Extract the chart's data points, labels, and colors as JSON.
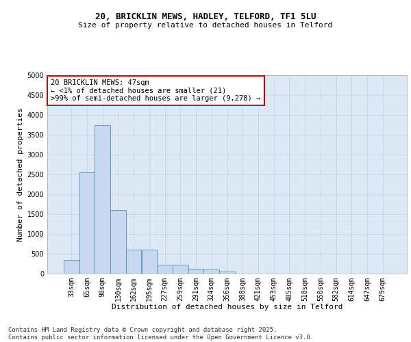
{
  "title1": "20, BRICKLIN MEWS, HADLEY, TELFORD, TF1 5LU",
  "title2": "Size of property relative to detached houses in Telford",
  "xlabel": "Distribution of detached houses by size in Telford",
  "ylabel": "Number of detached properties",
  "categories": [
    "33sqm",
    "65sqm",
    "98sqm",
    "130sqm",
    "162sqm",
    "195sqm",
    "227sqm",
    "259sqm",
    "291sqm",
    "324sqm",
    "356sqm",
    "388sqm",
    "421sqm",
    "453sqm",
    "485sqm",
    "518sqm",
    "550sqm",
    "582sqm",
    "614sqm",
    "647sqm",
    "679sqm"
  ],
  "values": [
    350,
    2550,
    3750,
    1600,
    605,
    600,
    230,
    230,
    120,
    100,
    55,
    0,
    0,
    0,
    0,
    0,
    0,
    0,
    0,
    0,
    0
  ],
  "bar_color": "#c6d9f0",
  "bar_edge_color": "#5a8ab5",
  "annotation_box_text": "20 BRICKLIN MEWS: 47sqm\n← <1% of detached houses are smaller (21)\n>99% of semi-detached houses are larger (9,278) →",
  "annotation_box_color": "#ffffff",
  "annotation_box_edge_color": "#cc0000",
  "ylim": [
    0,
    5000
  ],
  "yticks": [
    0,
    500,
    1000,
    1500,
    2000,
    2500,
    3000,
    3500,
    4000,
    4500,
    5000
  ],
  "grid_color": "#c8d8e8",
  "bg_color": "#dce8f4",
  "footer1": "Contains HM Land Registry data © Crown copyright and database right 2025.",
  "footer2": "Contains public sector information licensed under the Open Government Licence v3.0.",
  "title1_fontsize": 9,
  "title2_fontsize": 8,
  "xlabel_fontsize": 8,
  "ylabel_fontsize": 8,
  "tick_fontsize": 7,
  "annotation_fontsize": 7.5,
  "footer_fontsize": 6.5
}
